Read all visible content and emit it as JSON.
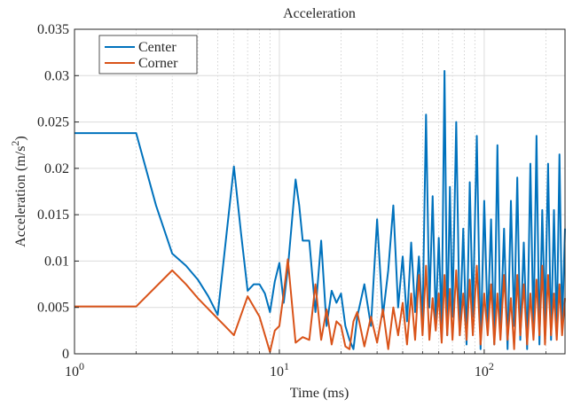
{
  "chart_data": {
    "type": "line",
    "title": "Acceleration",
    "x_label": "Time (ms)",
    "y_label": "Acceleration (m/s",
    "y_label_sup": "2",
    "y_label_end": ")",
    "log_x": true,
    "grid": true,
    "legend": "top-left",
    "xlim": [
      1,
      248
    ],
    "ylim": [
      0,
      0.035
    ],
    "xticks": [
      {
        "value": 1,
        "label": "10",
        "exponent": "0"
      },
      {
        "value": 10,
        "label": "10",
        "exponent": "1"
      },
      {
        "value": 100,
        "label": "10",
        "exponent": "2"
      }
    ],
    "xminorticks": [
      2,
      3,
      4,
      5,
      6,
      7,
      8,
      9,
      20,
      30,
      40,
      50,
      60,
      70,
      80,
      90,
      200
    ],
    "yticks": [
      0,
      0.005,
      0.01,
      0.015,
      0.02,
      0.025,
      0.03,
      0.035
    ],
    "series": [
      {
        "name": "Center",
        "color": "#0072bd",
        "x": [
          1,
          2,
          2.5,
          3,
          3.5,
          4,
          4.5,
          5,
          6,
          6.5,
          7,
          7.5,
          8,
          8.5,
          9,
          9.5,
          10,
          10.5,
          11,
          12,
          12.5,
          13,
          14,
          15,
          16,
          17,
          18,
          19,
          20,
          21,
          22,
          23,
          24,
          26,
          28,
          30,
          32,
          34,
          36,
          38,
          40,
          42,
          44,
          46,
          48,
          50,
          52,
          54,
          56,
          58,
          60,
          62,
          64,
          66,
          68,
          70,
          73,
          76,
          79,
          82,
          85,
          88,
          92,
          96,
          100,
          104,
          108,
          112,
          116,
          120,
          125,
          130,
          135,
          140,
          145,
          150,
          156,
          162,
          168,
          174,
          180,
          186,
          192,
          198,
          205,
          212,
          219,
          226,
          233,
          240,
          248
        ],
        "values": [
          0.0238,
          0.0238,
          0.016,
          0.0108,
          0.0095,
          0.008,
          0.0062,
          0.0042,
          0.0202,
          0.013,
          0.0068,
          0.0075,
          0.0075,
          0.0065,
          0.0045,
          0.0078,
          0.0098,
          0.0055,
          0.0092,
          0.0188,
          0.016,
          0.0122,
          0.0122,
          0.0045,
          0.0122,
          0.003,
          0.0068,
          0.0055,
          0.0065,
          0.003,
          0.0015,
          0.0005,
          0.004,
          0.0075,
          0.003,
          0.0145,
          0.004,
          0.009,
          0.016,
          0.005,
          0.0105,
          0.0035,
          0.012,
          0.0045,
          0.0105,
          0.0035,
          0.0258,
          0.005,
          0.017,
          0.0035,
          0.0125,
          0.003,
          0.0305,
          0.002,
          0.018,
          0.004,
          0.025,
          0.002,
          0.0135,
          0.001,
          0.0185,
          0.004,
          0.0235,
          0.0005,
          0.0165,
          0.003,
          0.0145,
          0.001,
          0.0225,
          0.002,
          0.0135,
          0.0005,
          0.0165,
          0.003,
          0.019,
          0.0015,
          0.012,
          0.0005,
          0.0205,
          0.002,
          0.0235,
          0.001,
          0.0155,
          0.0035,
          0.0205,
          0.0015,
          0.0155,
          0.002,
          0.0215,
          0.003,
          0.0135
        ]
      },
      {
        "name": "Corner",
        "color": "#d95319",
        "x": [
          1,
          2,
          3,
          3.5,
          4,
          5,
          6,
          7,
          8,
          9,
          9.5,
          10,
          10.5,
          11,
          12,
          13,
          14,
          15,
          16,
          17,
          18,
          19,
          20,
          21,
          22,
          23,
          24,
          26,
          28,
          30,
          32,
          34,
          36,
          38,
          40,
          42,
          44,
          46,
          48,
          50,
          52,
          54,
          56,
          58,
          60,
          62,
          64,
          66,
          68,
          70,
          73,
          76,
          79,
          82,
          85,
          88,
          92,
          96,
          100,
          104,
          108,
          112,
          116,
          120,
          125,
          130,
          135,
          140,
          145,
          150,
          156,
          162,
          168,
          174,
          180,
          186,
          192,
          198,
          205,
          212,
          219,
          226,
          233,
          240,
          248
        ],
        "values": [
          0.0051,
          0.0051,
          0.009,
          0.0075,
          0.006,
          0.0038,
          0.002,
          0.0062,
          0.004,
          0.0002,
          0.0025,
          0.003,
          0.0065,
          0.0102,
          0.0012,
          0.0018,
          0.0015,
          0.0075,
          0.0015,
          0.0048,
          0.001,
          0.0035,
          0.003,
          0.0008,
          0.0005,
          0.0035,
          0.0045,
          0.0008,
          0.004,
          0.0012,
          0.0048,
          0.0005,
          0.005,
          0.002,
          0.0055,
          0.001,
          0.0065,
          0.0015,
          0.0085,
          0.002,
          0.0095,
          0.0015,
          0.006,
          0.0025,
          0.0065,
          0.0012,
          0.0085,
          0.002,
          0.007,
          0.0015,
          0.009,
          0.002,
          0.0065,
          0.0015,
          0.008,
          0.002,
          0.0095,
          0.001,
          0.0065,
          0.002,
          0.0075,
          0.001,
          0.0065,
          0.0015,
          0.0085,
          0.0015,
          0.006,
          0.0005,
          0.0085,
          0.002,
          0.0075,
          0.001,
          0.0065,
          0.0015,
          0.008,
          0.002,
          0.0095,
          0.001,
          0.0085,
          0.002,
          0.0065,
          0.0015,
          0.0075,
          0.002,
          0.006
        ]
      }
    ]
  }
}
